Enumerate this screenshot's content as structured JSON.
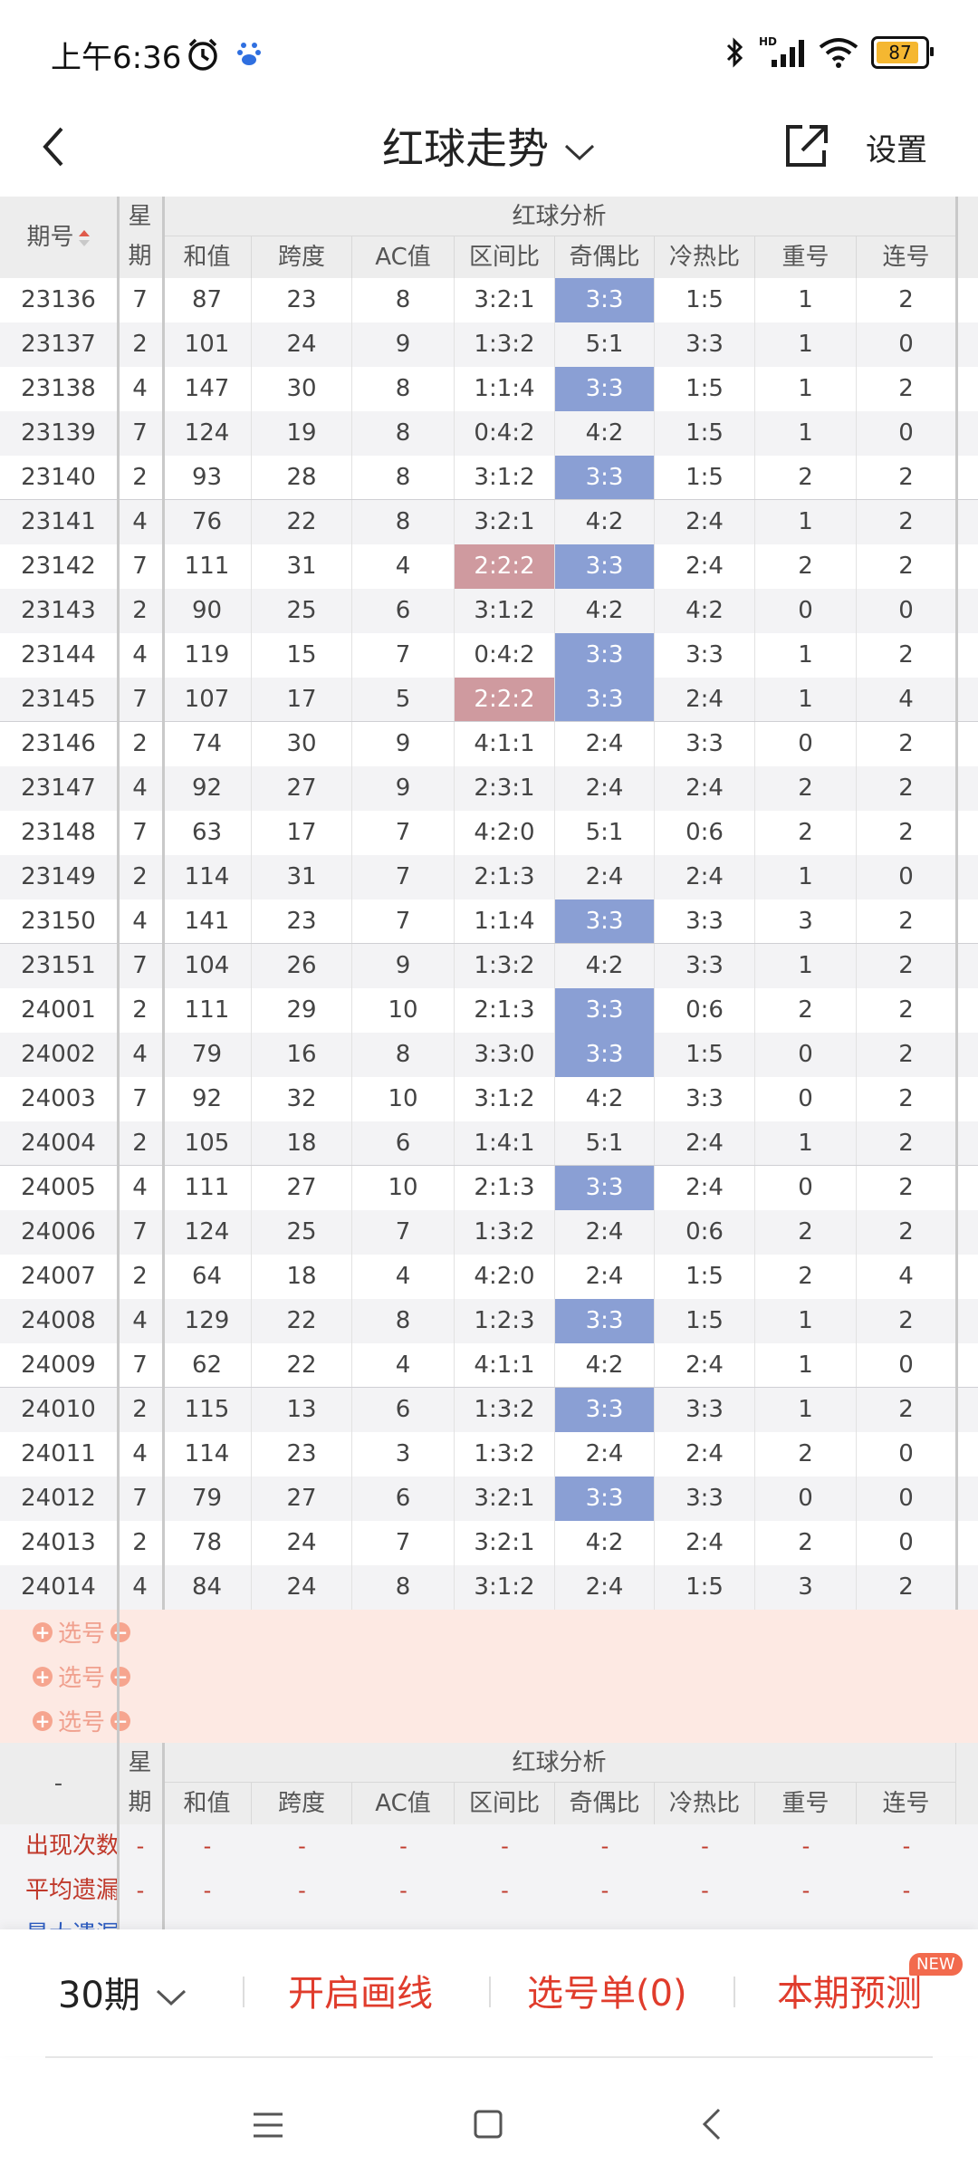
{
  "status": {
    "time": "上午6:36",
    "battery": "87"
  },
  "header": {
    "title": "红球走势",
    "settings": "设置"
  },
  "table": {
    "col_period": "期号",
    "col_week_1": "星",
    "col_week_2": "期",
    "group_title": "红球分析",
    "columns": [
      "和值",
      "跨度",
      "AC值",
      "区间比",
      "奇偶比",
      "冷热比",
      "重号",
      "连号"
    ],
    "rows": [
      {
        "id": "23136",
        "w": "7",
        "v": [
          "87",
          "23",
          "8",
          "3:2:1",
          "3:3",
          "1:5",
          "1",
          "2"
        ],
        "hl": [
          4
        ]
      },
      {
        "id": "23137",
        "w": "2",
        "v": [
          "101",
          "24",
          "9",
          "1:3:2",
          "5:1",
          "3:3",
          "1",
          "0"
        ],
        "hl": []
      },
      {
        "id": "23138",
        "w": "4",
        "v": [
          "147",
          "30",
          "8",
          "1:1:4",
          "3:3",
          "1:5",
          "1",
          "2"
        ],
        "hl": [
          4
        ]
      },
      {
        "id": "23139",
        "w": "7",
        "v": [
          "124",
          "19",
          "8",
          "0:4:2",
          "4:2",
          "1:5",
          "1",
          "0"
        ],
        "hl": []
      },
      {
        "id": "23140",
        "w": "2",
        "v": [
          "93",
          "28",
          "8",
          "3:1:2",
          "3:3",
          "1:5",
          "2",
          "2"
        ],
        "hl": [
          4
        ]
      },
      {
        "id": "23141",
        "w": "4",
        "v": [
          "76",
          "22",
          "8",
          "3:2:1",
          "4:2",
          "2:4",
          "1",
          "2"
        ],
        "hl": []
      },
      {
        "id": "23142",
        "w": "7",
        "v": [
          "111",
          "31",
          "4",
          "2:2:2",
          "3:3",
          "2:4",
          "2",
          "2"
        ],
        "hl": [
          4
        ],
        "hlr": [
          3
        ]
      },
      {
        "id": "23143",
        "w": "2",
        "v": [
          "90",
          "25",
          "6",
          "3:1:2",
          "4:2",
          "4:2",
          "0",
          "0"
        ],
        "hl": []
      },
      {
        "id": "23144",
        "w": "4",
        "v": [
          "119",
          "15",
          "7",
          "0:4:2",
          "3:3",
          "3:3",
          "1",
          "2"
        ],
        "hl": [
          4
        ]
      },
      {
        "id": "23145",
        "w": "7",
        "v": [
          "107",
          "17",
          "5",
          "2:2:2",
          "3:3",
          "2:4",
          "1",
          "4"
        ],
        "hl": [
          4
        ],
        "hlr": [
          3
        ]
      },
      {
        "id": "23146",
        "w": "2",
        "v": [
          "74",
          "30",
          "9",
          "4:1:1",
          "2:4",
          "3:3",
          "0",
          "2"
        ],
        "hl": []
      },
      {
        "id": "23147",
        "w": "4",
        "v": [
          "92",
          "27",
          "9",
          "2:3:1",
          "2:4",
          "2:4",
          "2",
          "2"
        ],
        "hl": []
      },
      {
        "id": "23148",
        "w": "7",
        "v": [
          "63",
          "17",
          "7",
          "4:2:0",
          "5:1",
          "0:6",
          "2",
          "2"
        ],
        "hl": []
      },
      {
        "id": "23149",
        "w": "2",
        "v": [
          "114",
          "31",
          "7",
          "2:1:3",
          "2:4",
          "2:4",
          "1",
          "0"
        ],
        "hl": []
      },
      {
        "id": "23150",
        "w": "4",
        "v": [
          "141",
          "23",
          "7",
          "1:1:4",
          "3:3",
          "3:3",
          "3",
          "2"
        ],
        "hl": [
          4
        ]
      },
      {
        "id": "23151",
        "w": "7",
        "v": [
          "104",
          "26",
          "9",
          "1:3:2",
          "4:2",
          "3:3",
          "1",
          "2"
        ],
        "hl": []
      },
      {
        "id": "24001",
        "w": "2",
        "v": [
          "111",
          "29",
          "10",
          "2:1:3",
          "3:3",
          "0:6",
          "2",
          "2"
        ],
        "hl": [
          4
        ]
      },
      {
        "id": "24002",
        "w": "4",
        "v": [
          "79",
          "16",
          "8",
          "3:3:0",
          "3:3",
          "1:5",
          "0",
          "2"
        ],
        "hl": [
          4
        ]
      },
      {
        "id": "24003",
        "w": "7",
        "v": [
          "92",
          "32",
          "10",
          "3:1:2",
          "4:2",
          "3:3",
          "0",
          "2"
        ],
        "hl": []
      },
      {
        "id": "24004",
        "w": "2",
        "v": [
          "105",
          "18",
          "6",
          "1:4:1",
          "5:1",
          "2:4",
          "1",
          "2"
        ],
        "hl": []
      },
      {
        "id": "24005",
        "w": "4",
        "v": [
          "111",
          "27",
          "10",
          "2:1:3",
          "3:3",
          "2:4",
          "0",
          "2"
        ],
        "hl": [
          4
        ]
      },
      {
        "id": "24006",
        "w": "7",
        "v": [
          "124",
          "25",
          "7",
          "1:3:2",
          "2:4",
          "0:6",
          "2",
          "2"
        ],
        "hl": []
      },
      {
        "id": "24007",
        "w": "2",
        "v": [
          "64",
          "18",
          "4",
          "4:2:0",
          "2:4",
          "1:5",
          "2",
          "4"
        ],
        "hl": []
      },
      {
        "id": "24008",
        "w": "4",
        "v": [
          "129",
          "22",
          "8",
          "1:2:3",
          "3:3",
          "1:5",
          "1",
          "2"
        ],
        "hl": [
          4
        ]
      },
      {
        "id": "24009",
        "w": "7",
        "v": [
          "62",
          "22",
          "4",
          "4:1:1",
          "4:2",
          "2:4",
          "1",
          "0"
        ],
        "hl": []
      },
      {
        "id": "24010",
        "w": "2",
        "v": [
          "115",
          "13",
          "6",
          "1:3:2",
          "3:3",
          "3:3",
          "1",
          "2"
        ],
        "hl": [
          4
        ]
      },
      {
        "id": "24011",
        "w": "4",
        "v": [
          "114",
          "23",
          "3",
          "1:3:2",
          "2:4",
          "2:4",
          "2",
          "0"
        ],
        "hl": []
      },
      {
        "id": "24012",
        "w": "7",
        "v": [
          "79",
          "27",
          "6",
          "3:2:1",
          "3:3",
          "3:3",
          "0",
          "0"
        ],
        "hl": [
          4
        ]
      },
      {
        "id": "24013",
        "w": "2",
        "v": [
          "78",
          "24",
          "7",
          "3:2:1",
          "4:2",
          "2:4",
          "2",
          "0"
        ],
        "hl": []
      },
      {
        "id": "24014",
        "w": "4",
        "v": [
          "84",
          "24",
          "8",
          "3:1:2",
          "2:4",
          "1:5",
          "3",
          "2"
        ],
        "hl": []
      }
    ],
    "pick_label": "选号",
    "footer_period": "-",
    "stats": [
      {
        "label": "出现次数",
        "val": "-"
      },
      {
        "label": "平均遗漏",
        "val": "-"
      },
      {
        "label": "最大遗漏",
        "val": "-"
      }
    ]
  },
  "bottom": {
    "period": "30期",
    "draw": "开启画线",
    "picklist": "选号单(0)",
    "predict": "本期预测",
    "badge": "NEW"
  },
  "colors": {
    "odd_even_highlight": "#8a9fd4",
    "zone_highlight": "#cf9a9f",
    "accent": "#e03c2c"
  }
}
